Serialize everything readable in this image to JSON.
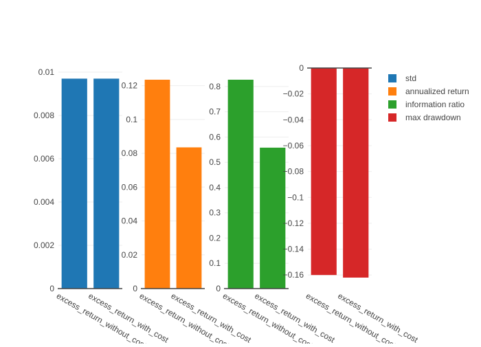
{
  "chart_data": {
    "type": "bar",
    "title": "",
    "legend": {
      "placement": "top-right",
      "entries": [
        {
          "name": "std",
          "color": "#1f77b4"
        },
        {
          "name": "annualized return",
          "color": "#ff7f0e"
        },
        {
          "name": "information ratio",
          "color": "#2ca02c"
        },
        {
          "name": "max drawdown",
          "color": "#d62728"
        }
      ]
    },
    "grid": true,
    "subplots": [
      {
        "series_name": "std",
        "color": "#1f77b4",
        "categories": [
          "excess_return_without_cost",
          "excess_return_with_cost"
        ],
        "values": [
          0.0097,
          0.0097
        ],
        "ylim": [
          0,
          0.01
        ],
        "yticks": [
          0,
          0.002,
          0.004,
          0.006,
          0.008,
          0.01
        ],
        "ytick_labels": [
          "0",
          "0.002",
          "0.004",
          "0.006",
          "0.008",
          "0.01"
        ]
      },
      {
        "series_name": "annualized return",
        "color": "#ff7f0e",
        "categories": [
          "excess_return_without_cost",
          "excess_return_with_cost"
        ],
        "values": [
          0.1235,
          0.0835
        ],
        "ylim": [
          0,
          0.1235
        ],
        "yticks": [
          0,
          0.02,
          0.04,
          0.06,
          0.08,
          0.1,
          0.12
        ],
        "ytick_labels": [
          "0",
          "0.02",
          "0.04",
          "0.06",
          "0.08",
          "0.1",
          "0.12"
        ]
      },
      {
        "series_name": "information ratio",
        "color": "#2ca02c",
        "categories": [
          "excess_return_without_cost",
          "excess_return_with_cost"
        ],
        "values": [
          0.827,
          0.558
        ],
        "ylim": [
          0,
          0.827
        ],
        "yticks": [
          0,
          0.1,
          0.2,
          0.3,
          0.4,
          0.5,
          0.6,
          0.7,
          0.8
        ],
        "ytick_labels": [
          "0",
          "0.1",
          "0.2",
          "0.3",
          "0.4",
          "0.5",
          "0.6",
          "0.7",
          "0.8"
        ]
      },
      {
        "series_name": "max drawdown",
        "color": "#d62728",
        "categories": [
          "excess_return_without_cost",
          "excess_return_with_cost"
        ],
        "values": [
          -0.16,
          -0.162
        ],
        "ylim": [
          -0.162,
          0
        ],
        "yticks": [
          0,
          -0.02,
          -0.04,
          -0.06,
          -0.08,
          -0.1,
          -0.12,
          -0.14,
          -0.16
        ],
        "ytick_labels": [
          "0",
          "−0.02",
          "−0.04",
          "−0.06",
          "−0.08",
          "−0.1",
          "−0.12",
          "−0.14",
          "−0.16"
        ]
      }
    ]
  }
}
